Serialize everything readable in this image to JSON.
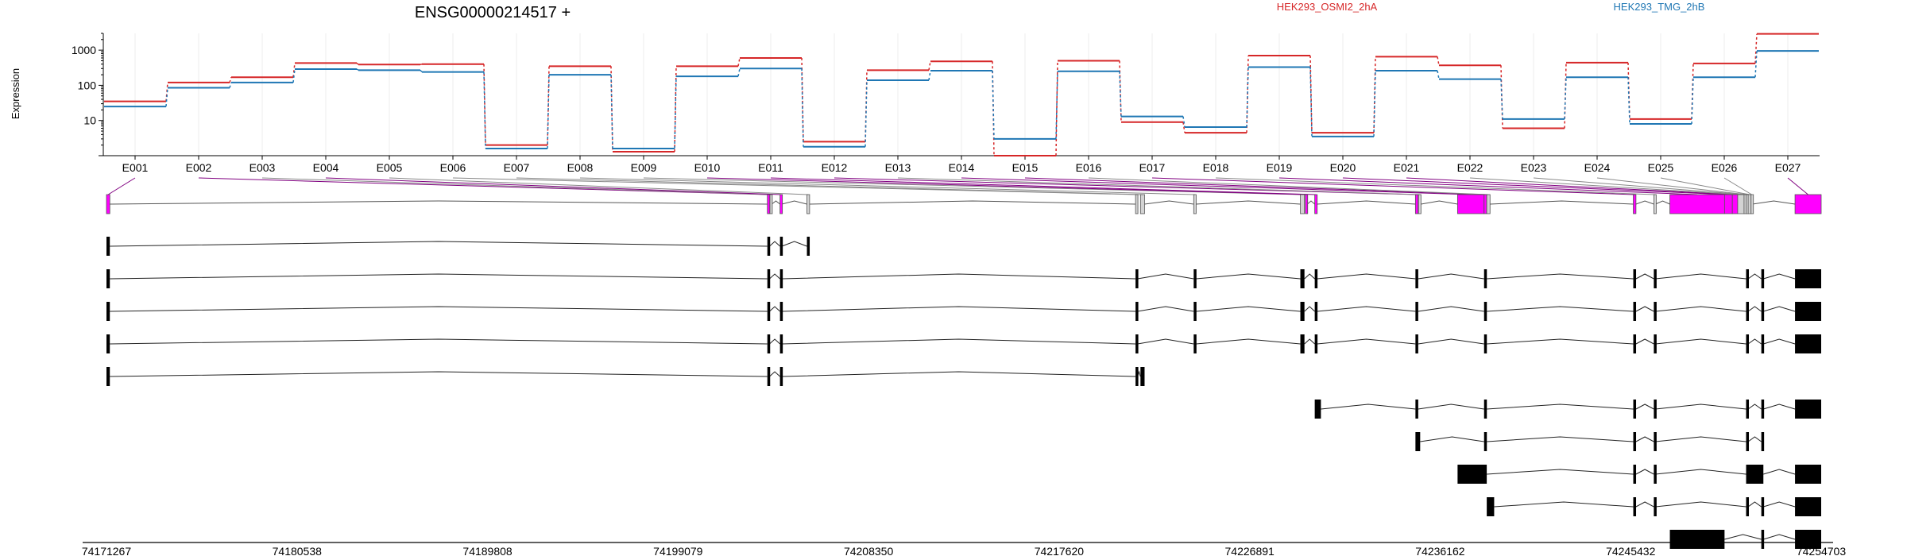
{
  "title": "ENSG00000214517 +",
  "ylabel": "Expression",
  "legend": [
    {
      "name": "HEK293_OSMI2_2hA",
      "color": "#d62728"
    },
    {
      "name": "HEK293_TMG_2hB",
      "color": "#1f77b4"
    }
  ],
  "colors": {
    "exon_usage": "#ff00ff",
    "exon_other": "#d3d3d3",
    "transcript": "#000000",
    "red": "#d62728",
    "blue": "#1f77b4",
    "connector": "#800080"
  },
  "chart_data": [
    {
      "type": "line",
      "title": "ENSG00000214517 +",
      "ylabel": "Expression",
      "yscale": "log",
      "ylim": [
        1,
        3000
      ],
      "yticks": [
        10,
        100,
        1000
      ],
      "ytick_labels": [
        "10",
        "100",
        "1000"
      ],
      "categories": [
        "E001",
        "E002",
        "E003",
        "E004",
        "E005",
        "E006",
        "E007",
        "E008",
        "E009",
        "E010",
        "E011",
        "E012",
        "E013",
        "E014",
        "E015",
        "E016",
        "E017",
        "E018",
        "E019",
        "E020",
        "E021",
        "E022",
        "E023",
        "E024",
        "E025",
        "E026",
        "E027"
      ],
      "series": [
        {
          "name": "HEK293_OSMI2_2hA",
          "values": [
            35,
            120,
            170,
            430,
            390,
            400,
            2,
            350,
            1.3,
            350,
            600,
            2.5,
            270,
            480,
            1,
            500,
            9,
            4.5,
            700,
            4.5,
            650,
            370,
            6,
            440,
            11,
            420,
            2900
          ]
        },
        {
          "name": "HEK293_TMG_2hB",
          "values": [
            25,
            85,
            120,
            290,
            270,
            240,
            1.6,
            200,
            1.6,
            180,
            300,
            1.8,
            140,
            260,
            3,
            250,
            13,
            6.5,
            330,
            3.5,
            260,
            150,
            11,
            170,
            8,
            170,
            950
          ]
        }
      ]
    },
    {
      "type": "gene_structure",
      "x_tick_labels": [
        "74171267",
        "74180538",
        "74189808",
        "74199079",
        "74208350",
        "74217620",
        "74226891",
        "74236162",
        "74245432",
        "74254703"
      ],
      "xlim": [
        74171267,
        74254703
      ],
      "exon_bins": [
        {
          "id": "E001",
          "start": 74171267,
          "end": 74171430,
          "highlight": true
        },
        {
          "id": "E002",
          "start": 74203425,
          "end": 74203530,
          "highlight": true
        },
        {
          "id": "E003",
          "start": 74203550,
          "end": 74203640,
          "highlight": false
        },
        {
          "id": "E004",
          "start": 74204040,
          "end": 74204130,
          "highlight": true
        },
        {
          "id": "E005",
          "start": 74205350,
          "end": 74205480,
          "highlight": false
        },
        {
          "id": "E006",
          "start": 74221340,
          "end": 74221440,
          "highlight": false
        },
        {
          "id": "E007",
          "start": 74221580,
          "end": 74221780,
          "highlight": false
        },
        {
          "id": "E008",
          "start": 74224170,
          "end": 74224290,
          "highlight": false
        },
        {
          "id": "E009",
          "start": 74229360,
          "end": 74229560,
          "highlight": false
        },
        {
          "id": "E010",
          "start": 74229600,
          "end": 74229700,
          "highlight": true
        },
        {
          "id": "E011",
          "start": 74230060,
          "end": 74230180,
          "highlight": true
        },
        {
          "id": "E012",
          "start": 74234960,
          "end": 74235090,
          "highlight": true
        },
        {
          "id": "E013",
          "start": 74235110,
          "end": 74235230,
          "highlight": false
        },
        {
          "id": "E014",
          "start": 74237010,
          "end": 74238300,
          "highlight": true
        },
        {
          "id": "E015",
          "start": 74238300,
          "end": 74238430,
          "highlight": true
        },
        {
          "id": "E016",
          "start": 74238430,
          "end": 74238590,
          "highlight": false
        },
        {
          "id": "E017",
          "start": 74245560,
          "end": 74245690,
          "highlight": true
        },
        {
          "id": "E018",
          "start": 74246560,
          "end": 74246640,
          "highlight": false
        },
        {
          "id": "E019",
          "start": 74247340,
          "end": 74250000,
          "highlight": true
        },
        {
          "id": "E020",
          "start": 74250000,
          "end": 74250380,
          "highlight": true
        },
        {
          "id": "E021",
          "start": 74250380,
          "end": 74250640,
          "highlight": true
        },
        {
          "id": "E022",
          "start": 74250640,
          "end": 74250950,
          "highlight": false
        },
        {
          "id": "E023",
          "start": 74250950,
          "end": 74251050,
          "highlight": false
        },
        {
          "id": "E024",
          "start": 74251050,
          "end": 74251150,
          "highlight": false
        },
        {
          "id": "E025",
          "start": 74251150,
          "end": 74251290,
          "highlight": false
        },
        {
          "id": "E026",
          "start": 74251290,
          "end": 74251360,
          "highlight": false
        },
        {
          "id": "E027",
          "start": 74253430,
          "end": 74254703,
          "highlight": true
        }
      ],
      "transcripts": [
        [
          [
            74171267,
            74171430
          ],
          [
            74203425,
            74203530
          ],
          [
            74204040,
            74204130
          ],
          [
            74205350,
            74205480
          ]
        ],
        [
          [
            74171267,
            74171430
          ],
          [
            74203425,
            74203530
          ],
          [
            74204040,
            74204130
          ],
          [
            74221340,
            74221440
          ],
          [
            74224170,
            74224290
          ],
          [
            74229360,
            74229560
          ],
          [
            74230060,
            74230180
          ],
          [
            74234960,
            74235090
          ],
          [
            74238300,
            74238430
          ],
          [
            74245560,
            74245690
          ],
          [
            74246560,
            74246640
          ],
          [
            74251050,
            74251150
          ],
          [
            74251790,
            74251890
          ],
          [
            74253430,
            74254703
          ]
        ],
        [
          [
            74171267,
            74171430
          ],
          [
            74203425,
            74203530
          ],
          [
            74204040,
            74204130
          ],
          [
            74221340,
            74221440
          ],
          [
            74224170,
            74224290
          ],
          [
            74229360,
            74229560
          ],
          [
            74230060,
            74230180
          ],
          [
            74234960,
            74235090
          ],
          [
            74238300,
            74238430
          ],
          [
            74245560,
            74245690
          ],
          [
            74246560,
            74246640
          ],
          [
            74251050,
            74251150
          ],
          [
            74251790,
            74251890
          ],
          [
            74253430,
            74254703
          ]
        ],
        [
          [
            74171267,
            74171430
          ],
          [
            74203425,
            74203530
          ],
          [
            74204040,
            74204130
          ],
          [
            74221340,
            74221440
          ],
          [
            74224170,
            74224290
          ],
          [
            74229360,
            74229560
          ],
          [
            74230060,
            74230180
          ],
          [
            74234960,
            74235090
          ],
          [
            74238300,
            74238430
          ],
          [
            74245560,
            74245690
          ],
          [
            74246560,
            74246640
          ],
          [
            74251050,
            74251150
          ],
          [
            74251790,
            74251890
          ],
          [
            74253430,
            74254703
          ]
        ],
        [
          [
            74171267,
            74171430
          ],
          [
            74203425,
            74203530
          ],
          [
            74204040,
            74204130
          ],
          [
            74221340,
            74221440
          ],
          [
            74221580,
            74221780
          ]
        ],
        [
          [
            74230060,
            74230360
          ],
          [
            74234960,
            74235090
          ],
          [
            74238300,
            74238430
          ],
          [
            74245560,
            74245690
          ],
          [
            74246560,
            74246640
          ],
          [
            74251050,
            74251150
          ],
          [
            74251790,
            74251890
          ],
          [
            74253430,
            74254703
          ]
        ],
        [
          [
            74234960,
            74235190
          ],
          [
            74238300,
            74238430
          ],
          [
            74245560,
            74245690
          ],
          [
            74246560,
            74246640
          ],
          [
            74251050,
            74251150
          ],
          [
            74251790,
            74251890
          ]
        ],
        [
          [
            74237010,
            74238430
          ],
          [
            74245560,
            74245690
          ],
          [
            74246560,
            74246640
          ],
          [
            74251050,
            74251890
          ],
          [
            74253430,
            74254703
          ]
        ],
        [
          [
            74238430,
            74238790
          ],
          [
            74245560,
            74245690
          ],
          [
            74246560,
            74246640
          ],
          [
            74251050,
            74251150
          ],
          [
            74251790,
            74251890
          ],
          [
            74253430,
            74254703
          ]
        ],
        [
          [
            74247340,
            74250000
          ],
          [
            74251790,
            74251890
          ],
          [
            74253430,
            74254703
          ]
        ]
      ]
    }
  ]
}
